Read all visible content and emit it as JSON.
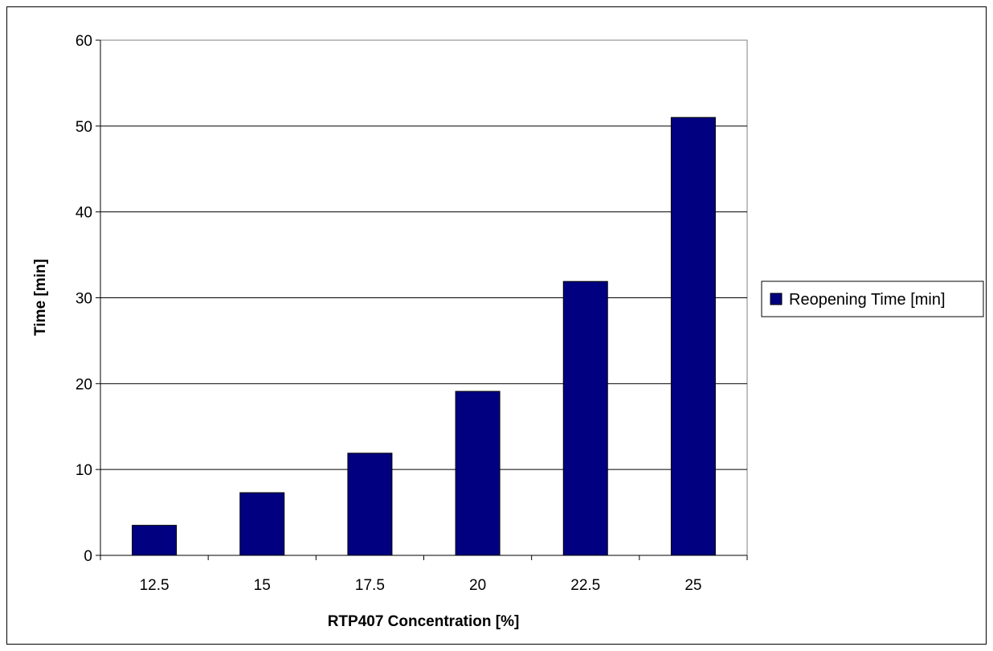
{
  "chart_data": {
    "type": "bar",
    "categories": [
      "12.5",
      "15",
      "17.5",
      "20",
      "22.5",
      "25"
    ],
    "series": [
      {
        "name": "Reopening Time [min]",
        "values": [
          3.5,
          7.3,
          11.9,
          19.1,
          31.9,
          51.0
        ],
        "color": "#000080"
      }
    ],
    "xlabel": "RTP407 Concentration [%]",
    "ylabel": "Time [min]",
    "ylim": [
      0,
      60
    ],
    "yticks": [
      "0",
      "10",
      "20",
      "30",
      "40",
      "50",
      "60"
    ],
    "grid": true,
    "legend_position": "right"
  }
}
